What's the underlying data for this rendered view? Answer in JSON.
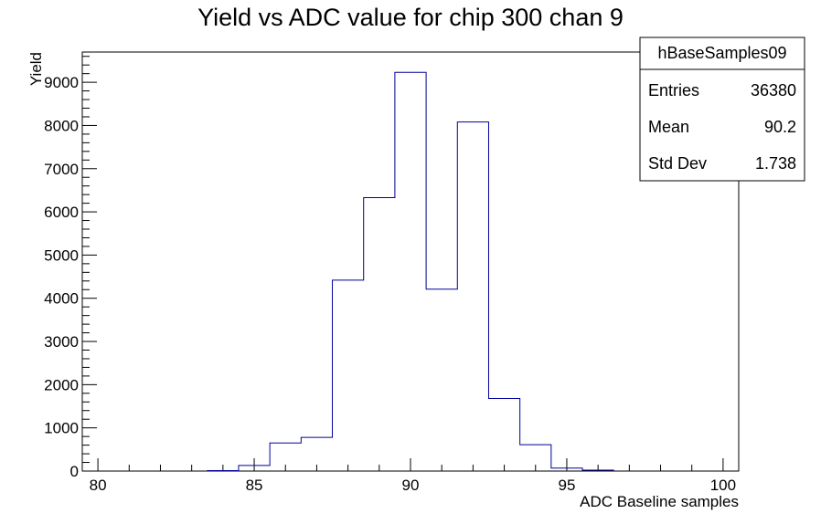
{
  "chart_data": {
    "type": "histogram",
    "title": "Yield vs ADC value for chip 300 chan 9",
    "xlabel": "ADC Baseline samples",
    "ylabel": "Yield",
    "xlim": [
      79.5,
      100.5
    ],
    "ylim": [
      0,
      9700
    ],
    "xticks": [
      80,
      85,
      90,
      95,
      100
    ],
    "yticks": [
      0,
      1000,
      2000,
      3000,
      4000,
      5000,
      6000,
      7000,
      8000,
      9000
    ],
    "bin_edges": [
      83.5,
      84.5,
      85.5,
      86.5,
      87.5,
      88.5,
      89.5,
      90.5,
      91.5,
      92.5,
      93.5,
      94.5,
      95.5,
      96.5
    ],
    "values": [
      10,
      130,
      650,
      780,
      4420,
      6330,
      9230,
      4210,
      8080,
      1680,
      610,
      70,
      20
    ],
    "line_color": "#000099",
    "stats_box": {
      "name": "hBaseSamples09",
      "rows": [
        {
          "label": "Entries",
          "value": "36380"
        },
        {
          "label": "Mean",
          "value": "90.2"
        },
        {
          "label": "Std Dev",
          "value": "1.738"
        }
      ]
    }
  }
}
